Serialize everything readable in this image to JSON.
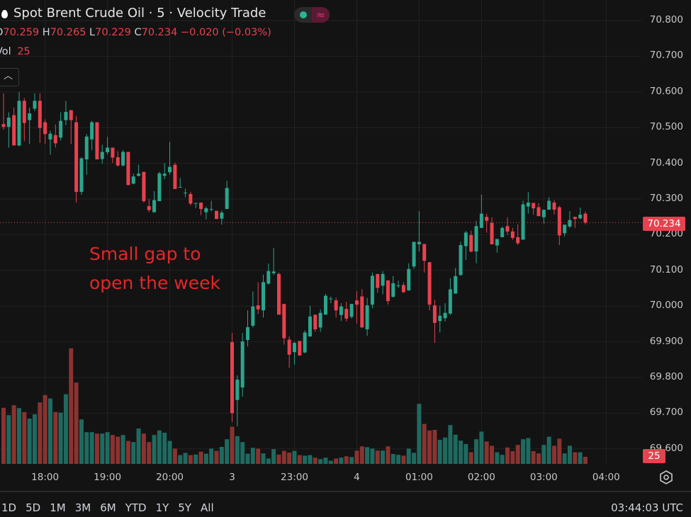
{
  "header": {
    "title": "Spot Brent Crude Oil · 5 · Velocity Trade",
    "toggle_icon": "wave-icon",
    "ohlc": {
      "o_label": "O",
      "o": "70.259",
      "h_label": "H",
      "h": "70.265",
      "l_label": "L",
      "l": "70.229",
      "c_label": "C",
      "c": "70.234",
      "change": "−0.020 (−0.03%)"
    },
    "vol_label": "Vol",
    "vol_value": "25",
    "collapse_icon": "chevron-up-icon"
  },
  "price_axis": {
    "current_price": "70.234",
    "current_volume": "25"
  },
  "bottom_bar": {
    "ranges": [
      "1D",
      "5D",
      "1M",
      "3M",
      "6M",
      "YTD",
      "1Y",
      "5Y",
      "All"
    ],
    "clock": "03:44:03 UTC",
    "settings_icon": "settings-icon"
  },
  "colors": {
    "background": "#131313",
    "up": "#2ba58c",
    "down": "#e8414f",
    "vol_up": "#1f6a60",
    "vol_down": "#8a3330",
    "grid": "#232323",
    "annotation": "#e3262a"
  },
  "chart_data": {
    "type": "candlestick",
    "interval": "5",
    "ylim": [
      69.6,
      70.8
    ],
    "y_ticks": [
      "70.800",
      "70.700",
      "70.600",
      "70.500",
      "70.400",
      "70.300",
      "70.200",
      "70.100",
      "70.000",
      "69.900",
      "69.800",
      "69.700",
      "69.600"
    ],
    "x_ticks": [
      {
        "label": "18:00",
        "time": "18:00"
      },
      {
        "label": "19:00",
        "time": "19:00"
      },
      {
        "label": "20:00",
        "time": "20:00"
      },
      {
        "label": "3",
        "time": "22:00"
      },
      {
        "label": "23:00",
        "time": "23:00"
      },
      {
        "label": "4",
        "time": "00:00"
      },
      {
        "label": "01:00",
        "time": "01:00"
      },
      {
        "label": "02:00",
        "time": "02:00"
      },
      {
        "label": "03:00",
        "time": "03:00"
      },
      {
        "label": "04:00",
        "time": "04:00"
      }
    ],
    "grid": true,
    "annotations": [
      {
        "text": "Small gap to\nopen the week"
      }
    ],
    "columns": [
      "time",
      "open",
      "high",
      "low",
      "close",
      "volume"
    ],
    "candles": [
      [
        "17:20",
        70.51,
        70.596,
        70.494,
        70.502,
        198
      ],
      [
        "17:25",
        70.502,
        70.543,
        70.444,
        70.528,
        172
      ],
      [
        "17:30",
        70.535,
        70.556,
        70.45,
        70.45,
        207
      ],
      [
        "17:35",
        70.45,
        70.6,
        70.448,
        70.575,
        197
      ],
      [
        "17:40",
        70.575,
        70.583,
        70.462,
        70.513,
        183
      ],
      [
        "17:45",
        70.521,
        70.556,
        70.454,
        70.54,
        160
      ],
      [
        "17:50",
        70.553,
        70.596,
        70.546,
        70.575,
        175
      ],
      [
        "17:55",
        70.575,
        70.596,
        70.457,
        70.499,
        217
      ],
      [
        "18:00",
        70.515,
        70.523,
        70.454,
        70.482,
        243
      ],
      [
        "18:05",
        70.467,
        70.492,
        70.424,
        70.483,
        231
      ],
      [
        "18:10",
        70.479,
        70.509,
        70.444,
        70.456,
        183
      ],
      [
        "18:15",
        70.472,
        70.543,
        70.464,
        70.519,
        181
      ],
      [
        "18:20",
        70.521,
        70.575,
        70.507,
        70.544,
        246
      ],
      [
        "18:25",
        70.549,
        70.549,
        70.454,
        70.521,
        408
      ],
      [
        "18:30",
        70.515,
        70.533,
        70.29,
        70.32,
        287
      ],
      [
        "18:35",
        70.32,
        70.417,
        70.312,
        70.414,
        157
      ],
      [
        "18:40",
        70.411,
        70.482,
        70.368,
        70.475,
        112
      ],
      [
        "18:45",
        70.467,
        70.519,
        70.437,
        70.515,
        112
      ],
      [
        "18:50",
        70.515,
        70.515,
        70.411,
        70.411,
        107
      ],
      [
        "18:55",
        70.412,
        70.452,
        70.399,
        70.432,
        107
      ],
      [
        "19:00",
        70.431,
        70.474,
        70.424,
        70.444,
        112
      ],
      [
        "19:05",
        70.444,
        70.444,
        70.401,
        70.416,
        102
      ],
      [
        "19:10",
        70.417,
        70.434,
        70.391,
        70.394,
        96
      ],
      [
        "19:15",
        70.394,
        70.437,
        70.391,
        70.432,
        102
      ],
      [
        "19:20",
        70.432,
        70.432,
        70.339,
        70.339,
        81
      ],
      [
        "19:25",
        70.343,
        70.371,
        70.341,
        70.363,
        77
      ],
      [
        "19:30",
        70.365,
        70.396,
        70.363,
        70.371,
        125
      ],
      [
        "19:35",
        70.376,
        70.376,
        70.29,
        70.294,
        107
      ],
      [
        "19:40",
        70.28,
        70.3,
        70.263,
        70.269,
        77
      ],
      [
        "19:45",
        70.263,
        70.322,
        70.262,
        70.297,
        102
      ],
      [
        "19:50",
        70.294,
        70.376,
        70.294,
        70.372,
        118
      ],
      [
        "19:55",
        70.365,
        70.401,
        70.355,
        70.371,
        110
      ],
      [
        "20:00",
        70.375,
        70.46,
        70.368,
        70.39,
        81
      ],
      [
        "20:05",
        70.396,
        70.402,
        70.328,
        70.328,
        54
      ],
      [
        "20:10",
        70.333,
        70.359,
        70.331,
        70.334,
        31
      ],
      [
        "20:15",
        70.317,
        70.329,
        70.305,
        70.318,
        39
      ],
      [
        "20:20",
        70.314,
        70.32,
        70.282,
        70.287,
        31
      ],
      [
        "20:25",
        70.288,
        70.289,
        70.275,
        70.289,
        33
      ],
      [
        "20:30",
        70.29,
        70.29,
        70.255,
        70.272,
        43
      ],
      [
        "20:35",
        70.263,
        70.279,
        70.243,
        70.274,
        36
      ],
      [
        "20:40",
        70.271,
        70.295,
        70.265,
        70.272,
        54
      ],
      [
        "20:45",
        70.267,
        70.267,
        70.244,
        70.244,
        46
      ],
      [
        "20:50",
        70.245,
        70.268,
        70.228,
        70.262,
        60
      ],
      [
        "20:55",
        70.272,
        70.351,
        70.272,
        70.331,
        87
      ],
      [
        "22:00",
        69.899,
        69.925,
        69.675,
        69.7,
        131
      ],
      [
        "22:05",
        69.737,
        69.806,
        69.663,
        69.794,
        98
      ],
      [
        "22:10",
        69.772,
        69.925,
        69.746,
        69.901,
        77
      ],
      [
        "22:15",
        69.905,
        69.988,
        69.887,
        69.941,
        36
      ],
      [
        "22:20",
        69.945,
        70.041,
        69.94,
        69.999,
        57
      ],
      [
        "22:25",
        70.002,
        70.067,
        69.978,
        69.991,
        54
      ],
      [
        "22:30",
        69.988,
        70.088,
        69.968,
        70.067,
        37
      ],
      [
        "22:35",
        70.063,
        70.119,
        70.06,
        70.098,
        19
      ],
      [
        "22:40",
        70.092,
        70.163,
        70.087,
        70.097,
        52
      ],
      [
        "22:45",
        70.09,
        70.094,
        69.976,
        69.976,
        33
      ],
      [
        "22:50",
        70.006,
        70.006,
        69.892,
        69.91,
        46
      ],
      [
        "22:55",
        69.906,
        69.915,
        69.827,
        69.864,
        40
      ],
      [
        "23:00",
        69.871,
        69.9,
        69.836,
        69.897,
        46
      ],
      [
        "23:05",
        69.902,
        69.903,
        69.86,
        69.862,
        31
      ],
      [
        "23:10",
        69.87,
        69.932,
        69.868,
        69.926,
        29
      ],
      [
        "23:15",
        69.915,
        70.001,
        69.914,
        69.971,
        31
      ],
      [
        "23:20",
        69.976,
        69.976,
        69.928,
        69.935,
        22
      ],
      [
        "23:25",
        69.94,
        69.991,
        69.928,
        69.981,
        17
      ],
      [
        "23:30",
        69.976,
        70.034,
        69.976,
        70.029,
        22
      ],
      [
        "23:35",
        70.02,
        70.027,
        70.008,
        70.021,
        11
      ],
      [
        "23:40",
        70.016,
        70.024,
        69.968,
        69.988,
        19
      ],
      [
        "23:45",
        69.975,
        70.008,
        69.958,
        69.999,
        22
      ],
      [
        "23:50",
        69.992,
        70.012,
        69.957,
        69.965,
        27
      ],
      [
        "23:55",
        69.97,
        70.006,
        69.965,
        70.006,
        24
      ],
      [
        "00:00",
        70.016,
        70.042,
        69.951,
        70.004,
        47
      ],
      [
        "00:05",
        70.027,
        70.047,
        69.94,
        69.94,
        62
      ],
      [
        "00:10",
        69.935,
        70.023,
        69.917,
        70.002,
        59
      ],
      [
        "00:15",
        70.004,
        70.094,
        69.994,
        70.085,
        54
      ],
      [
        "00:20",
        70.09,
        70.09,
        70.037,
        70.051,
        47
      ],
      [
        "00:25",
        70.057,
        70.098,
        70.033,
        70.09,
        47
      ],
      [
        "00:30",
        70.072,
        70.072,
        70.004,
        70.014,
        62
      ],
      [
        "00:35",
        70.026,
        70.084,
        70.024,
        70.064,
        35
      ],
      [
        "00:40",
        70.056,
        70.071,
        70.051,
        70.058,
        32
      ],
      [
        "00:45",
        70.059,
        70.067,
        70.037,
        70.039,
        29
      ],
      [
        "00:50",
        70.044,
        70.12,
        70.043,
        70.104,
        54
      ],
      [
        "00:55",
        70.111,
        70.18,
        70.104,
        70.18,
        39
      ],
      [
        "01:00",
        70.173,
        70.266,
        70.153,
        70.18,
        212
      ],
      [
        "01:05",
        70.174,
        70.174,
        70.094,
        70.127,
        141
      ],
      [
        "01:10",
        70.123,
        70.123,
        69.988,
        70.004,
        118
      ],
      [
        "01:15",
        70.002,
        70.018,
        69.897,
        69.953,
        120
      ],
      [
        "01:20",
        69.958,
        70.001,
        69.926,
        69.973,
        85
      ],
      [
        "01:25",
        69.966,
        70.008,
        69.957,
        69.981,
        93
      ],
      [
        "01:30",
        69.979,
        70.078,
        69.975,
        70.047,
        137
      ],
      [
        "01:35",
        70.035,
        70.107,
        70.035,
        70.084,
        103
      ],
      [
        "01:40",
        70.087,
        70.18,
        70.085,
        70.171,
        82
      ],
      [
        "01:45",
        70.168,
        70.211,
        70.129,
        70.206,
        70
      ],
      [
        "01:50",
        70.199,
        70.211,
        70.15,
        70.153,
        41
      ],
      [
        "01:55",
        70.153,
        70.239,
        70.12,
        70.224,
        87
      ],
      [
        "02:00",
        70.219,
        70.312,
        70.219,
        70.259,
        114
      ],
      [
        "02:05",
        70.25,
        70.259,
        70.206,
        70.239,
        79
      ],
      [
        "02:10",
        70.233,
        70.249,
        70.173,
        70.173,
        64
      ],
      [
        "02:15",
        70.17,
        70.188,
        70.15,
        70.188,
        41
      ],
      [
        "02:20",
        70.193,
        70.223,
        70.193,
        70.219,
        32
      ],
      [
        "02:25",
        70.224,
        70.249,
        70.199,
        70.209,
        58
      ],
      [
        "02:30",
        70.209,
        70.219,
        70.186,
        70.191,
        45
      ],
      [
        "02:35",
        70.193,
        70.229,
        70.171,
        70.176,
        67
      ],
      [
        "02:40",
        70.186,
        70.295,
        70.186,
        70.285,
        87
      ],
      [
        "02:45",
        70.279,
        70.319,
        70.259,
        70.29,
        91
      ],
      [
        "02:50",
        70.289,
        70.289,
        70.256,
        70.274,
        45
      ],
      [
        "02:55",
        70.277,
        70.289,
        70.252,
        70.252,
        37
      ],
      [
        "03:00",
        70.249,
        70.27,
        70.231,
        70.27,
        67
      ],
      [
        "03:05",
        70.27,
        70.305,
        70.27,
        70.295,
        96
      ],
      [
        "03:10",
        70.29,
        70.297,
        70.257,
        70.27,
        64
      ],
      [
        "03:15",
        70.277,
        70.281,
        70.171,
        70.198,
        89
      ],
      [
        "03:20",
        70.204,
        70.228,
        70.195,
        70.228,
        37
      ],
      [
        "03:25",
        70.223,
        70.266,
        70.219,
        70.241,
        64
      ],
      [
        "03:30",
        70.25,
        70.25,
        70.219,
        70.244,
        41
      ],
      [
        "03:35",
        70.246,
        70.276,
        70.243,
        70.256,
        41
      ],
      [
        "03:40",
        70.259,
        70.265,
        70.229,
        70.234,
        25
      ]
    ]
  }
}
